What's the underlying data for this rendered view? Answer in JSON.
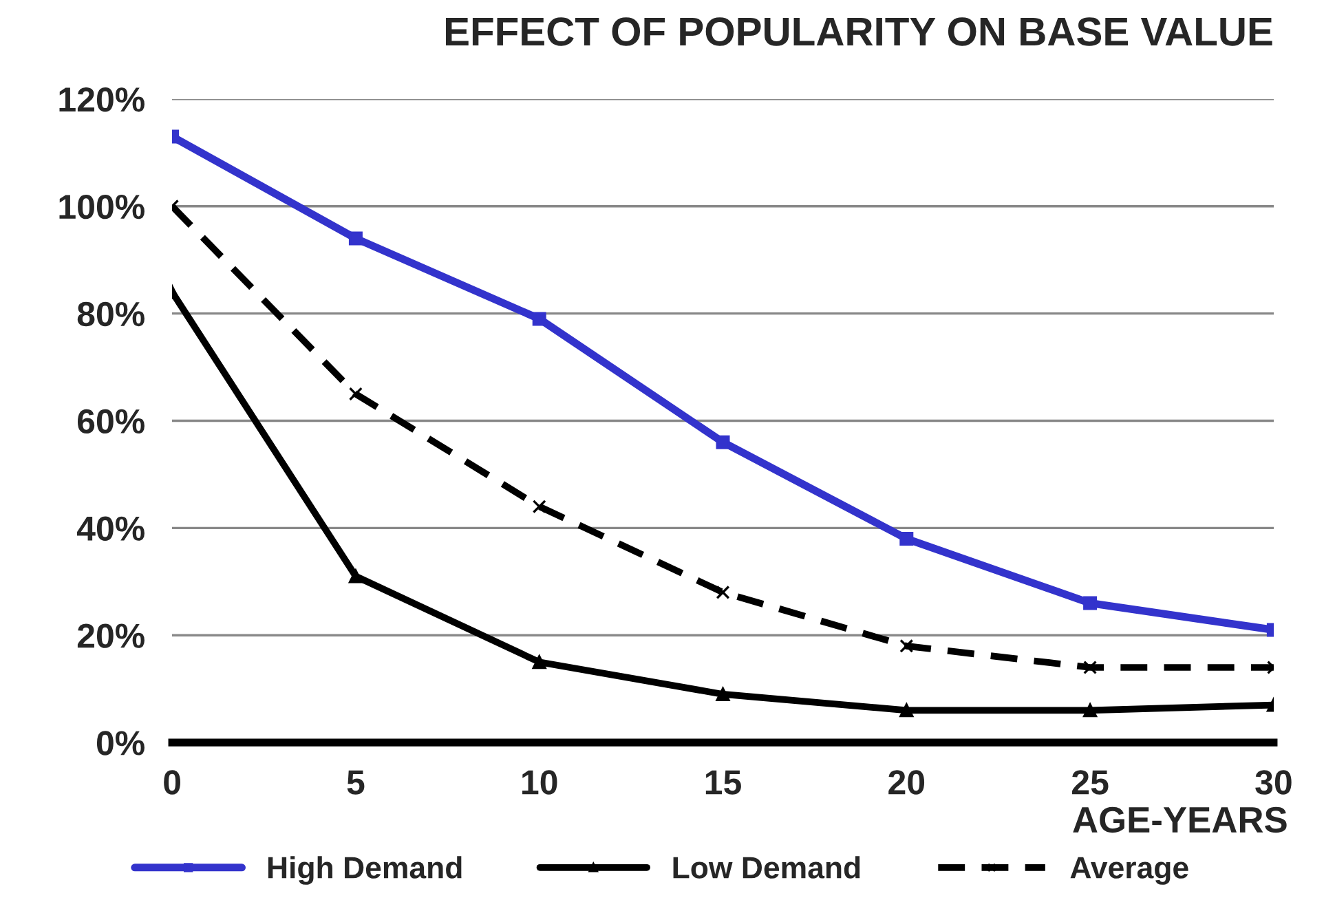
{
  "chart_data": {
    "type": "line",
    "title": "EFFECT OF POPULARITY ON BASE VALUE",
    "xlabel": "AGE-YEARS",
    "x": [
      0,
      5,
      10,
      15,
      20,
      25,
      30
    ],
    "series": [
      {
        "name": "High Demand",
        "color": "#3333cc",
        "marker": "square",
        "line_style": "solid",
        "values": [
          113,
          94,
          79,
          56,
          38,
          26,
          21
        ]
      },
      {
        "name": "Low Demand",
        "color": "#000000",
        "marker": "triangle",
        "line_style": "solid",
        "values": [
          84,
          31,
          15,
          9,
          6,
          6,
          7
        ]
      },
      {
        "name": "Average",
        "color": "#000000",
        "marker": "cross",
        "line_style": "dashed",
        "values": [
          100,
          65,
          44,
          28,
          18,
          14,
          14
        ]
      }
    ],
    "xlim": [
      0,
      30
    ],
    "xticks": [
      0,
      5,
      10,
      15,
      20,
      25,
      30
    ],
    "ylim": [
      0,
      120
    ],
    "yticks": [
      {
        "value": 0,
        "label": "0%"
      },
      {
        "value": 20,
        "label": "20%"
      },
      {
        "value": 40,
        "label": "40%"
      },
      {
        "value": 60,
        "label": "60%"
      },
      {
        "value": 80,
        "label": "80%"
      },
      {
        "value": 100,
        "label": "100%"
      },
      {
        "value": 120,
        "label": "120%"
      }
    ],
    "grid": "y",
    "legend": "bottom"
  }
}
